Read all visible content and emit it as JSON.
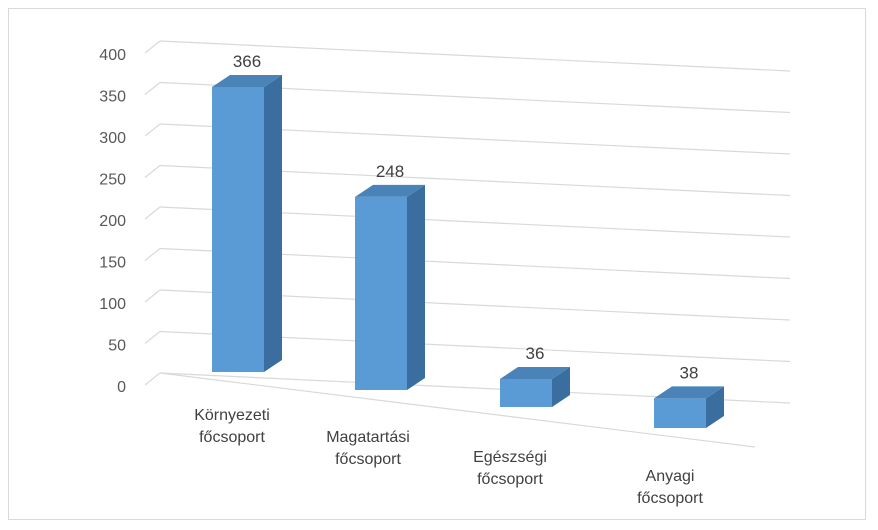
{
  "chart_data": {
    "type": "bar",
    "style": "3d-column",
    "categories": [
      [
        "Környezeti",
        "főcsoport"
      ],
      [
        "Magatartási",
        "főcsoport"
      ],
      [
        "Egészségi",
        "főcsoport"
      ],
      [
        "Anyagi",
        "főcsoport"
      ]
    ],
    "values": [
      366,
      248,
      36,
      38
    ],
    "data_labels": [
      "366",
      "248",
      "36",
      "38"
    ],
    "y_ticks": [
      "0",
      "50",
      "100",
      "150",
      "200",
      "250",
      "300",
      "350",
      "400"
    ],
    "ylim": [
      0,
      400
    ],
    "grid": true,
    "legend": "none",
    "colors": {
      "bar_front": "#5B9BD5",
      "bar_side": "#3A6E9E",
      "bar_top": "#4A83B8",
      "grid": "#d9d9d9",
      "frame": "#d9d9d9"
    }
  }
}
